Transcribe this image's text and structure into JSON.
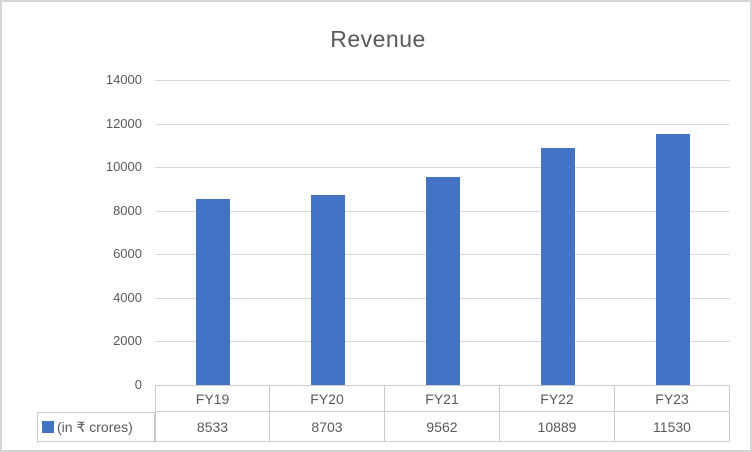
{
  "window": {
    "background_color": "#FFFFFF",
    "border_color": "#D6D6D6"
  },
  "chart_data": {
    "type": "bar",
    "title": "Revenue",
    "categories": [
      "FY19",
      "FY20",
      "FY21",
      "FY22",
      "FY23"
    ],
    "series": [
      {
        "name": "(in ₹ crores)",
        "values": [
          8533,
          8703,
          9562,
          10889,
          11530
        ]
      }
    ],
    "xlabel": "",
    "ylabel": "",
    "ylim": [
      0,
      14000
    ],
    "yticks": [
      0,
      2000,
      4000,
      6000,
      8000,
      10000,
      12000,
      14000
    ],
    "grid": true,
    "legend_position": "bottom-left-in-data-table",
    "data_table_shown": true,
    "bar_color": "#4472C4",
    "gridline_color": "#D9D9D9",
    "table_border_color": "#CBCBCB",
    "text_color": "#595959"
  }
}
